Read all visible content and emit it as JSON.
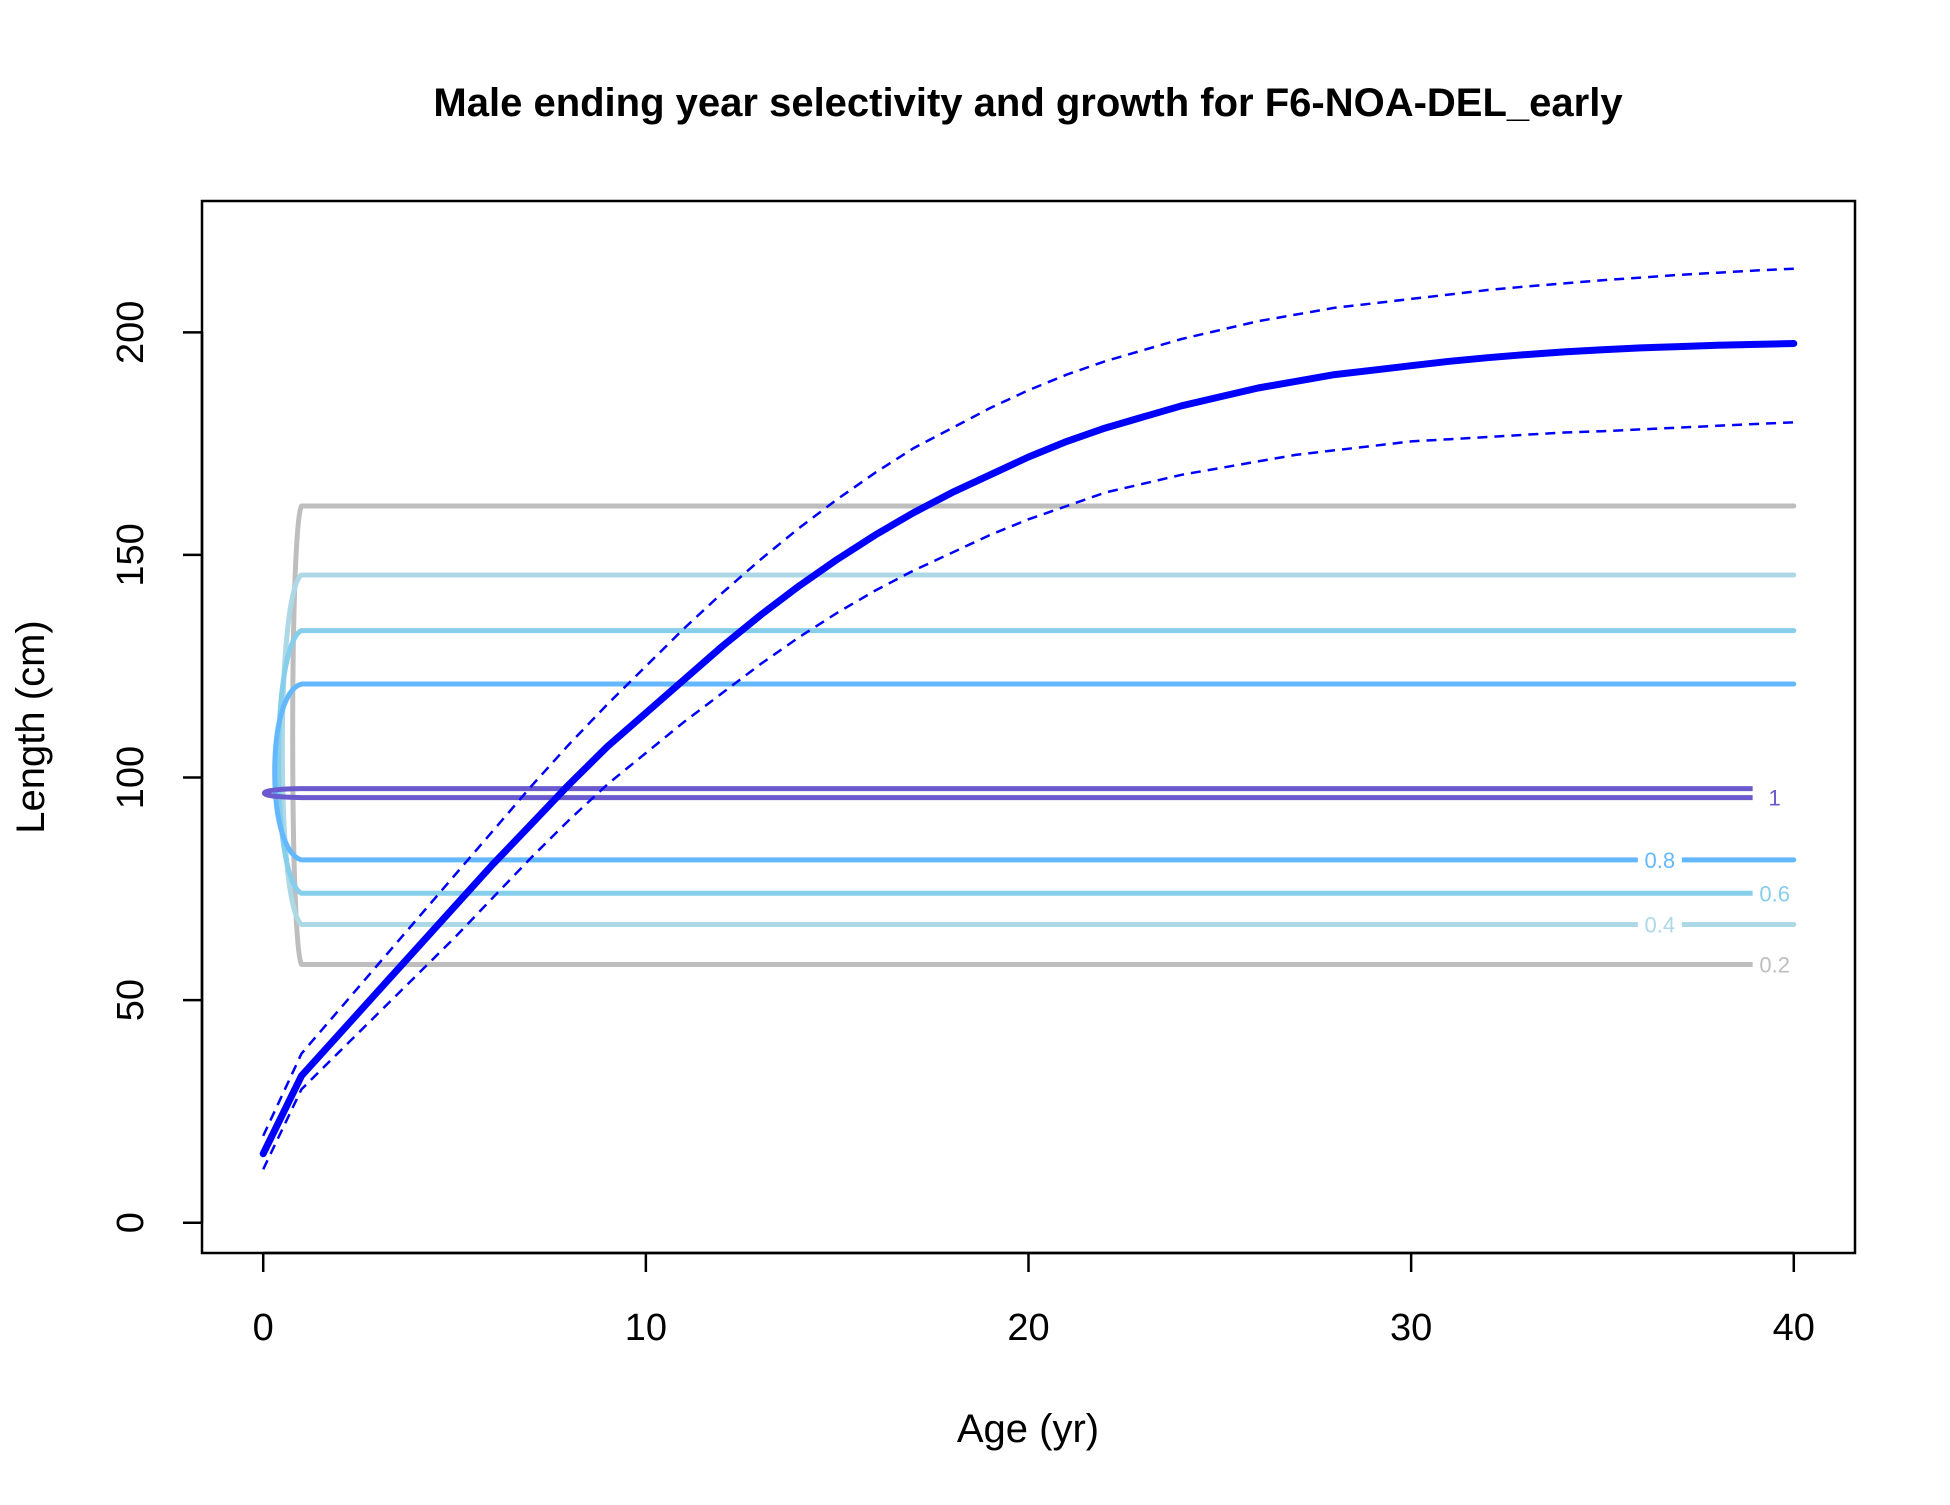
{
  "chart_data": {
    "type": "line",
    "title": "Male ending year selectivity and growth for F6-NOA-DEL_early",
    "xlabel": "Age (yr)",
    "ylabel": "Length (cm)",
    "xlim": [
      -1.6,
      41.6
    ],
    "ylim": [
      -6.8,
      229.5
    ],
    "x_ticks": [
      0,
      10,
      20,
      30,
      40
    ],
    "y_ticks": [
      0,
      50,
      100,
      150,
      200
    ],
    "grid": false,
    "legend": "none",
    "growth": {
      "color": "#0000FF",
      "mean": {
        "x": [
          0,
          1,
          2,
          3,
          4,
          5,
          6,
          7,
          8,
          9,
          10,
          11,
          12,
          13,
          14,
          15,
          16,
          17,
          18,
          19,
          20,
          21,
          22,
          23,
          24,
          25,
          26,
          27,
          28,
          29,
          30,
          31,
          32,
          33,
          34,
          35,
          36,
          37,
          38,
          39,
          40
        ],
        "y": [
          15.5,
          33.0,
          42.5,
          52.0,
          61.5,
          71.0,
          80.5,
          89.5,
          98.5,
          107.0,
          114.5,
          122.0,
          129.5,
          136.5,
          143.0,
          149.0,
          154.5,
          159.5,
          164.0,
          168.0,
          172.0,
          175.5,
          178.5,
          181.0,
          183.5,
          185.5,
          187.5,
          189.0,
          190.5,
          191.5,
          192.5,
          193.5,
          194.3,
          195.0,
          195.6,
          196.1,
          196.5,
          196.8,
          197.1,
          197.3,
          197.5
        ]
      },
      "upper": {
        "x": [
          0,
          1,
          2,
          3,
          4,
          5,
          6,
          7,
          8,
          9,
          10,
          11,
          12,
          13,
          14,
          15,
          16,
          17,
          18,
          19,
          20,
          21,
          22,
          23,
          24,
          25,
          26,
          27,
          28,
          29,
          30,
          31,
          32,
          33,
          34,
          35,
          36,
          37,
          38,
          39,
          40
        ],
        "y": [
          19.5,
          38.0,
          48.0,
          58.0,
          68.0,
          78.0,
          88.0,
          98.0,
          107.5,
          116.5,
          125.0,
          133.5,
          141.5,
          149.0,
          156.0,
          162.5,
          168.5,
          174.0,
          178.5,
          183.0,
          187.0,
          190.5,
          193.5,
          196.0,
          198.5,
          200.5,
          202.5,
          204.0,
          205.5,
          206.5,
          207.5,
          208.5,
          209.5,
          210.3,
          211.0,
          211.7,
          212.3,
          212.9,
          213.4,
          213.9,
          214.3
        ]
      },
      "lower": {
        "x": [
          0,
          1,
          2,
          3,
          4,
          5,
          6,
          7,
          8,
          9,
          10,
          11,
          12,
          13,
          14,
          15,
          16,
          17,
          18,
          19,
          20,
          21,
          22,
          23,
          24,
          25,
          26,
          27,
          28,
          29,
          30,
          31,
          32,
          33,
          34,
          35,
          36,
          37,
          38,
          39,
          40
        ],
        "y": [
          12.0,
          30.0,
          38.5,
          47.0,
          55.5,
          64.0,
          73.0,
          82.0,
          90.5,
          98.5,
          105.5,
          112.5,
          119.0,
          125.5,
          131.5,
          137.0,
          142.0,
          146.5,
          150.5,
          154.5,
          158.0,
          161.0,
          164.0,
          166.0,
          168.0,
          169.5,
          171.0,
          172.5,
          173.5,
          174.5,
          175.5,
          176.0,
          176.5,
          177.0,
          177.5,
          177.8,
          178.2,
          178.6,
          179.0,
          179.4,
          179.8
        ]
      }
    },
    "selectivity_contours": [
      {
        "level": "0.2",
        "color": "#BEBEBE",
        "lower": 58,
        "upper": 161,
        "bulge": 0.23,
        "label_side": "lower",
        "label_x": 39.5
      },
      {
        "level": "0.4",
        "color": "#ADD8E6",
        "lower": 67,
        "upper": 145.5,
        "bulge": 0.5,
        "label_side": "lower",
        "label_x": 36.5
      },
      {
        "level": "0.6",
        "color": "#87CEEB",
        "lower": 74,
        "upper": 133,
        "bulge": 0.6,
        "label_side": "lower",
        "label_x": 39.5
      },
      {
        "level": "0.8",
        "color": "#63B8FF",
        "lower": 81.5,
        "upper": 121,
        "bulge": 0.7,
        "label_side": "lower",
        "label_x": 36.5
      },
      {
        "level": "1",
        "color": "#6A5ACD",
        "lower": 95.5,
        "upper": 97.5,
        "bulge": 0.97,
        "label_side": "lower",
        "label_x": 39.5
      }
    ]
  }
}
